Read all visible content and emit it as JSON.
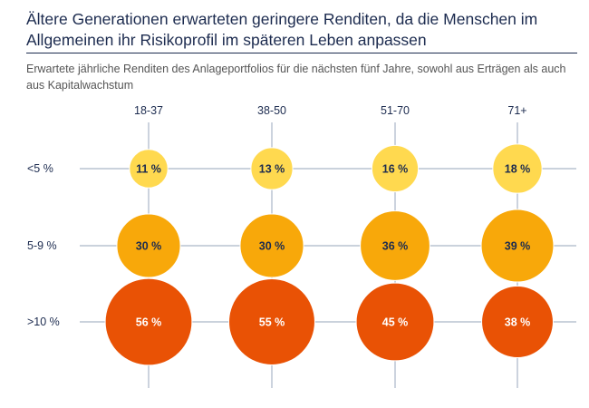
{
  "chart_data": {
    "type": "bubble",
    "title": "Ältere Generationen erwarteten geringere Renditen, da die Menschen im Allgemeinen ihr Risikoprofil im späteren Leben anpassen",
    "subtitle": "Erwartete jährliche Renditen des Anlageportfolios für die nächsten fünf Jahre, sowohl aus Erträgen als auch aus Kapitalwachstum",
    "categories": [
      "18-37",
      "38-50",
      "51-70",
      "71+"
    ],
    "rows": [
      "<5 %",
      "5-9 %",
      ">10 %"
    ],
    "values": [
      [
        11,
        13,
        16,
        18
      ],
      [
        30,
        30,
        36,
        39
      ],
      [
        56,
        55,
        45,
        38
      ]
    ],
    "labels": [
      [
        "11 %",
        "13 %",
        "16 %",
        "18 %"
      ],
      [
        "30 %",
        "30 %",
        "36 %",
        "39 %"
      ],
      [
        "56 %",
        "55 %",
        "45 %",
        "38 %"
      ]
    ],
    "row_colors": [
      "#FFD94F",
      "#F8A80A",
      "#E95205"
    ],
    "label_colors": [
      "#1c2b4f",
      "#1c2b4f",
      "#ffffff"
    ],
    "grid_color": "#aab6c8"
  }
}
